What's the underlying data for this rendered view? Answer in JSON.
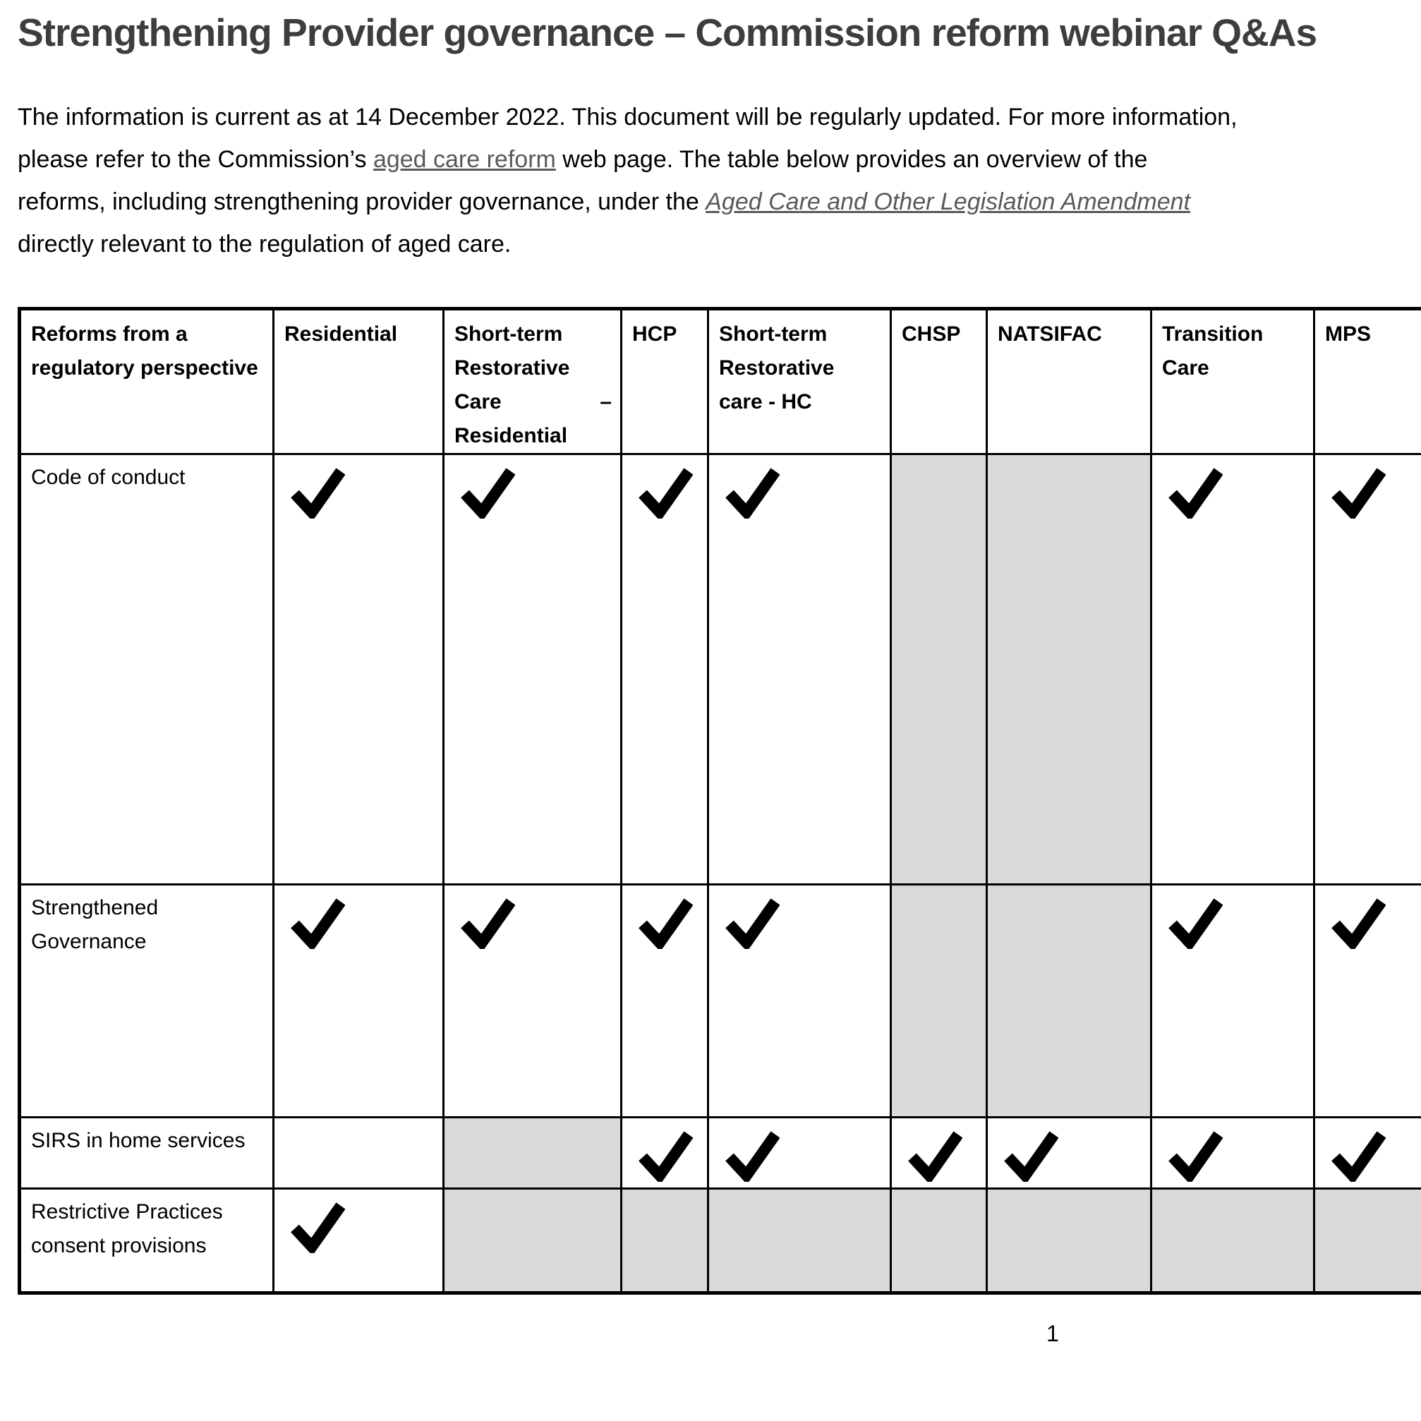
{
  "page": {
    "title": "Strengthening Provider governance – Commission reform webinar Q&As",
    "page_number": "1"
  },
  "intro": {
    "line1": "The information is current as at 14 December 2022. This document will be regularly updated. For more information,",
    "line2_pre": "please refer to the Commission’s ",
    "line2_link": "aged care reform",
    "line2_post": " web page. The table below provides an overview of the",
    "line3_pre": "reforms, including strengthening provider governance, under the ",
    "line3_link": "Aged Care and Other Legislation Amendment",
    "line4": "directly relevant to the regulation of aged care."
  },
  "table": {
    "columns": [
      "Reforms from a regulatory perspective",
      "Residential",
      "Short-term Restorative Care – Residential",
      "HCP",
      "Short-term Restorative care - HC",
      "CHSP",
      "NATSIFAC",
      "Transition Care",
      "MPS"
    ],
    "rows": [
      {
        "label": "Code of conduct",
        "cells": [
          "check",
          "check",
          "check",
          "check",
          "gray",
          "gray",
          "check",
          "check"
        ]
      },
      {
        "label": "Strengthened Governance",
        "cells": [
          "check",
          "check",
          "check",
          "check",
          "gray",
          "gray",
          "check",
          "check"
        ]
      },
      {
        "label": "SIRS in home services",
        "cells": [
          "empty",
          "gray",
          "check",
          "check",
          "check",
          "check",
          "check",
          "check"
        ]
      },
      {
        "label": "Restrictive Practices consent provisions",
        "cells": [
          "check",
          "gray",
          "gray",
          "gray",
          "gray",
          "gray",
          "gray",
          "gray"
        ]
      }
    ]
  },
  "colors": {
    "shaded_cell": "#d9d9d9",
    "border": "#000000",
    "link": "#595959",
    "title": "#3d3d3d"
  }
}
